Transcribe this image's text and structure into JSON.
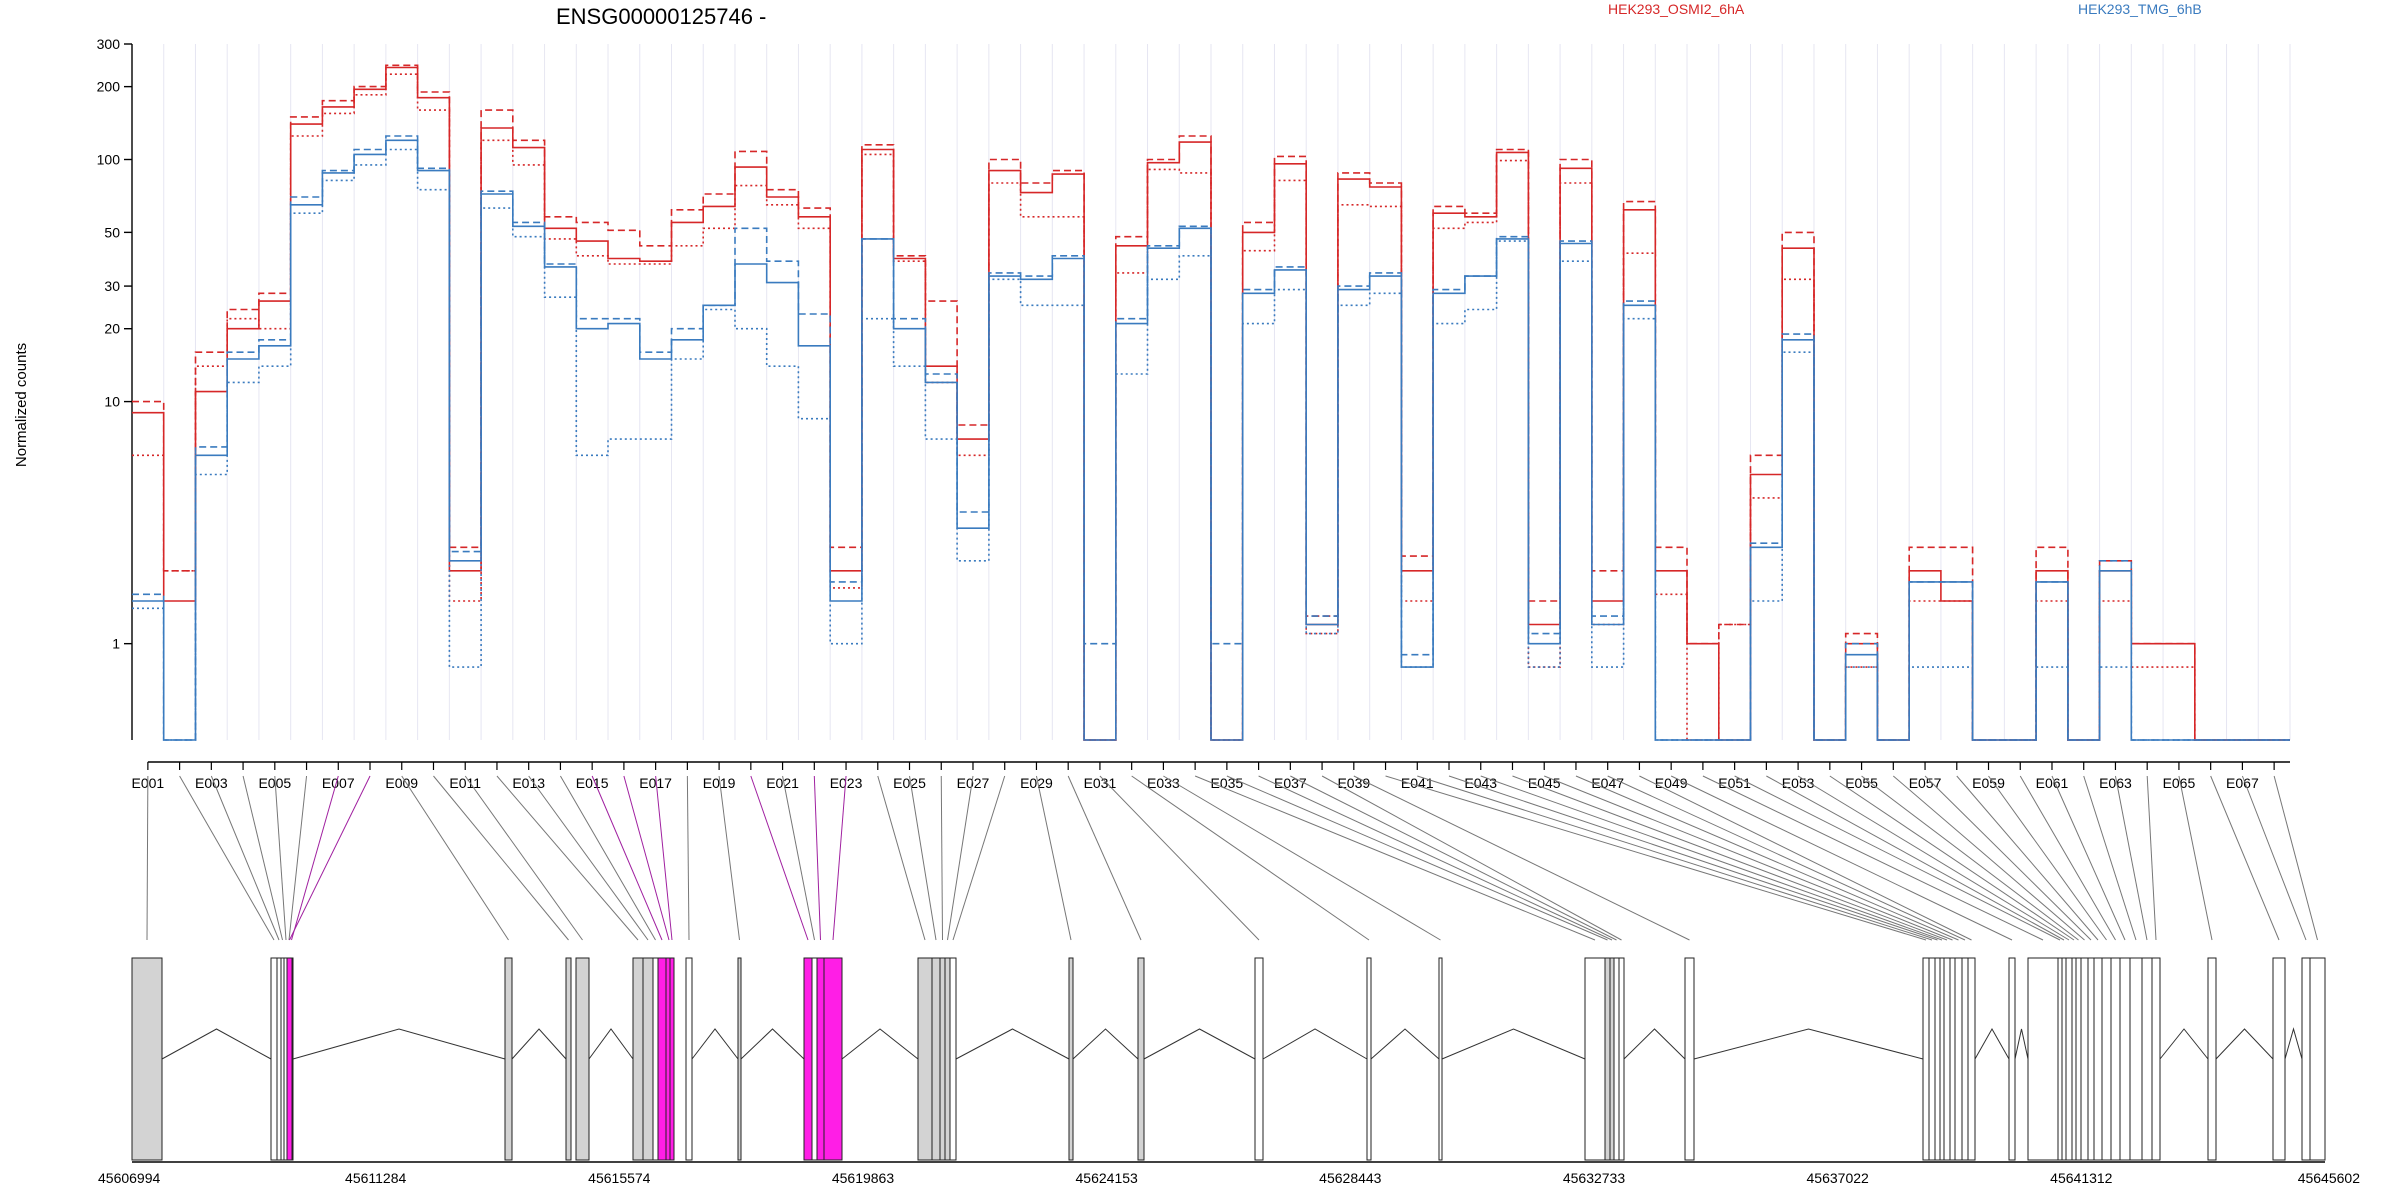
{
  "chart_data": {
    "type": "line",
    "title": "ENSG00000125746 -",
    "xlabel": "",
    "ylabel": "Normalized counts",
    "y_scale": "log",
    "ylim": [
      0.4,
      300
    ],
    "y_ticks": [
      1,
      10,
      20,
      30,
      50,
      100,
      200,
      300
    ],
    "grid": true,
    "legend_position": "top",
    "categories": [
      "E001",
      "E002",
      "E003",
      "E004",
      "E005",
      "E006",
      "E007",
      "E008",
      "E009",
      "E010",
      "E011",
      "E012",
      "E013",
      "E014",
      "E015",
      "E016",
      "E017",
      "E018",
      "E019",
      "E020",
      "E021",
      "E022",
      "E023",
      "E024",
      "E025",
      "E026",
      "E027",
      "E028",
      "E029",
      "E030",
      "E031",
      "E032",
      "E033",
      "E034",
      "E035",
      "E036",
      "E037",
      "E038",
      "E039",
      "E040",
      "E041",
      "E042",
      "E043",
      "E044",
      "E045",
      "E046",
      "E047",
      "E048",
      "E049",
      "E050",
      "E051",
      "E052",
      "E053",
      "E054",
      "E055",
      "E056",
      "E057",
      "E058",
      "E059",
      "E060",
      "E061",
      "E062",
      "E063",
      "E064",
      "E065",
      "E066",
      "E067",
      "E068"
    ],
    "x_tick_labels": [
      "E001",
      "E003",
      "E005",
      "E007",
      "E009",
      "E011",
      "E013",
      "E015",
      "E017",
      "E019",
      "E021",
      "E023",
      "E025",
      "E027",
      "E029",
      "E031",
      "E033",
      "E035",
      "E037",
      "E039",
      "E041",
      "E043",
      "E045",
      "E047",
      "E049",
      "E051",
      "E053",
      "E055",
      "E057",
      "E059",
      "E061",
      "E063",
      "E065",
      "E067"
    ],
    "series": [
      {
        "name": "HEK293_OSMI2_6hA",
        "color": "#d62728",
        "dash": "solid",
        "values": [
          9,
          1.5,
          11,
          20,
          26,
          140,
          165,
          195,
          240,
          180,
          2,
          135,
          112,
          52,
          46,
          39,
          38,
          55,
          64,
          93,
          70,
          58,
          2,
          110,
          39,
          14,
          7,
          90,
          73,
          87,
          0.4,
          44,
          97,
          118,
          0.4,
          50,
          96,
          1.2,
          83,
          77,
          2,
          60,
          58,
          107,
          1.2,
          92,
          1.5,
          62,
          2,
          1,
          0.4,
          5,
          43,
          0.4,
          1,
          0.4,
          2,
          1.5,
          0.4,
          0.4,
          2,
          0.4,
          2,
          1,
          1,
          0.4,
          0.4,
          0.4
        ]
      },
      {
        "name": "HEK293_OSMI2_6hA",
        "color": "#d62728",
        "dash": "dashed",
        "values": [
          10,
          2,
          16,
          24,
          28,
          150,
          175,
          200,
          245,
          190,
          2.5,
          160,
          120,
          58,
          55,
          51,
          44,
          62,
          72,
          108,
          75,
          63,
          2.5,
          115,
          40,
          26,
          8,
          100,
          80,
          90,
          0.4,
          48,
          100,
          125,
          0.4,
          55,
          103,
          1.3,
          88,
          80,
          2.3,
          64,
          60,
          110,
          1.5,
          100,
          2,
          67,
          2.5,
          1,
          1.2,
          6,
          50,
          0.4,
          1.1,
          0.4,
          2.5,
          2.5,
          0.4,
          0.4,
          2.5,
          0.4,
          2.2,
          1,
          1,
          0.4,
          0.4,
          0.4
        ]
      },
      {
        "name": "HEK293_OSMI2_6hA",
        "color": "#d62728",
        "dash": "dotted",
        "values": [
          6,
          2,
          14,
          22,
          20,
          125,
          155,
          185,
          225,
          160,
          1.5,
          120,
          95,
          47,
          40,
          37,
          37,
          44,
          52,
          78,
          65,
          52,
          1.7,
          105,
          38,
          12,
          6,
          80,
          58,
          58,
          0.4,
          34,
          91,
          88,
          0.4,
          42,
          82,
          1.1,
          65,
          64,
          1.5,
          52,
          55,
          99,
          0.8,
          80,
          1.2,
          41,
          1.6,
          0.4,
          1.2,
          4,
          32,
          0.4,
          0.8,
          0.4,
          1.5,
          1.5,
          0.4,
          0.4,
          1.5,
          0.4,
          1.5,
          0.8,
          0.8,
          0.4,
          0.4,
          0.4
        ]
      },
      {
        "name": "HEK293_TMG_6hB",
        "color": "#3a7bbf",
        "dash": "solid",
        "values": [
          1.5,
          0.4,
          6,
          15,
          17,
          65,
          88,
          105,
          120,
          90,
          2.2,
          72,
          53,
          36,
          20,
          21,
          15,
          18,
          25,
          37,
          31,
          17,
          1.5,
          47,
          20,
          12,
          3,
          33,
          32,
          39,
          0.4,
          21,
          43,
          52,
          0.4,
          28,
          35,
          1.2,
          29,
          33,
          0.8,
          28,
          33,
          47,
          1,
          45,
          1.2,
          25,
          0.4,
          0.4,
          0.4,
          2.5,
          18,
          0.4,
          0.9,
          0.4,
          1.8,
          1.8,
          0.4,
          0.4,
          1.8,
          0.4,
          2,
          0.4,
          0.4,
          0.4,
          0.4,
          0.4
        ]
      },
      {
        "name": "HEK293_TMG_6hB",
        "color": "#3a7bbf",
        "dash": "dashed",
        "values": [
          1.6,
          0.4,
          6.5,
          16,
          18,
          70,
          90,
          110,
          125,
          92,
          2.4,
          74,
          55,
          37,
          22,
          22,
          16,
          20,
          25,
          52,
          38,
          23,
          1.8,
          47,
          22,
          13,
          3.5,
          34,
          33,
          40,
          1,
          22,
          44,
          53,
          1,
          29,
          36,
          1.3,
          30,
          34,
          0.9,
          29,
          33,
          48,
          1.1,
          46,
          1.3,
          26,
          0.4,
          0.4,
          0.4,
          2.6,
          19,
          0.4,
          1,
          0.4,
          1.8,
          1.8,
          0.4,
          0.4,
          1.8,
          0.4,
          2.2,
          0.4,
          0.4,
          0.4,
          0.4,
          0.4
        ]
      },
      {
        "name": "HEK293_TMG_6hB",
        "color": "#3a7bbf",
        "dash": "dotted",
        "values": [
          1.4,
          0.4,
          5,
          12,
          14,
          60,
          82,
          95,
          110,
          75,
          0.8,
          63,
          48,
          27,
          6,
          7,
          7,
          15,
          24,
          20,
          14,
          8.5,
          1,
          22,
          14,
          7,
          2.2,
          32,
          25,
          25,
          0.4,
          13,
          32,
          40,
          0.4,
          21,
          29,
          1.1,
          25,
          28,
          0.8,
          21,
          24,
          46,
          0.8,
          38,
          0.8,
          22,
          0.4,
          0.4,
          0.4,
          1.5,
          16,
          0.4,
          0.8,
          0.4,
          0.8,
          0.8,
          0.4,
          0.4,
          0.8,
          0.4,
          0.8,
          0.4,
          0.4,
          0.4,
          0.4,
          0.4
        ]
      }
    ],
    "legend": [
      {
        "label": "HEK293_OSMI2_6hA",
        "color": "#d62728"
      },
      {
        "label": "HEK293_TMG_6hB",
        "color": "#3a7bbf"
      }
    ],
    "genomic_axis": {
      "range": [
        45606994,
        45645602
      ],
      "tick_labels": [
        "45606994",
        "45611284",
        "45615574",
        "45619863",
        "45624153",
        "45628443",
        "45632733",
        "45637022",
        "45641312",
        "45645602"
      ]
    },
    "gene_model": {
      "highlight_color": "#ff1ee6",
      "highlighted_exons": [
        "E007",
        "E008",
        "E015",
        "E016",
        "E017",
        "E020",
        "E022",
        "E023"
      ]
    }
  }
}
